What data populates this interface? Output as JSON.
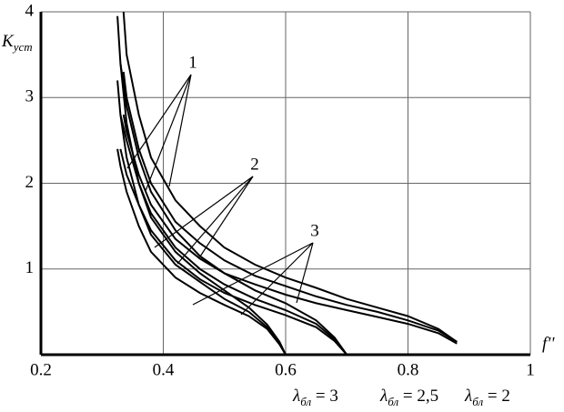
{
  "chart_data": {
    "type": "line",
    "ylabel": {
      "base": "K",
      "sub": "уст"
    },
    "xlabel": "f''",
    "xlim": [
      0.2,
      1
    ],
    "xticks": [
      0.2,
      0.4,
      0.6,
      0.8,
      1
    ],
    "ylim": [
      0,
      4
    ],
    "yticks": [
      1,
      2,
      3,
      4
    ],
    "grid": true,
    "color": "#000000",
    "series": [
      {
        "x": [
          0.325,
          0.33,
          0.34,
          0.36,
          0.38,
          0.42,
          0.46,
          0.5,
          0.54,
          0.57,
          0.59,
          0.6
        ],
        "values": [
          3.95,
          3.4,
          2.7,
          2.0,
          1.6,
          1.2,
          0.95,
          0.75,
          0.55,
          0.35,
          0.15,
          0
        ]
      },
      {
        "x": [
          0.325,
          0.33,
          0.34,
          0.36,
          0.38,
          0.42,
          0.46,
          0.5,
          0.54,
          0.57,
          0.59,
          0.6
        ],
        "values": [
          3.2,
          2.8,
          2.3,
          1.75,
          1.4,
          1.05,
          0.85,
          0.65,
          0.5,
          0.32,
          0.14,
          0
        ]
      },
      {
        "x": [
          0.325,
          0.33,
          0.34,
          0.36,
          0.38,
          0.42,
          0.46,
          0.5,
          0.54,
          0.57,
          0.59,
          0.6
        ],
        "values": [
          2.4,
          2.2,
          1.9,
          1.5,
          1.2,
          0.9,
          0.72,
          0.58,
          0.45,
          0.3,
          0.12,
          0
        ]
      },
      {
        "x": [
          0.33,
          0.34,
          0.36,
          0.38,
          0.42,
          0.46,
          0.5,
          0.55,
          0.6,
          0.65,
          0.68,
          0.7
        ],
        "values": [
          3.4,
          2.9,
          2.3,
          1.9,
          1.45,
          1.15,
          0.95,
          0.75,
          0.6,
          0.4,
          0.2,
          0
        ]
      },
      {
        "x": [
          0.33,
          0.34,
          0.36,
          0.38,
          0.42,
          0.46,
          0.5,
          0.55,
          0.6,
          0.65,
          0.68,
          0.7
        ],
        "values": [
          2.8,
          2.5,
          2.0,
          1.65,
          1.25,
          1.0,
          0.82,
          0.65,
          0.52,
          0.36,
          0.18,
          0
        ]
      },
      {
        "x": [
          0.33,
          0.34,
          0.36,
          0.38,
          0.42,
          0.46,
          0.5,
          0.55,
          0.6,
          0.65,
          0.68,
          0.7
        ],
        "values": [
          2.4,
          2.1,
          1.75,
          1.45,
          1.1,
          0.88,
          0.72,
          0.58,
          0.46,
          0.32,
          0.16,
          0
        ]
      },
      {
        "x": [
          0.335,
          0.34,
          0.36,
          0.38,
          0.42,
          0.46,
          0.5,
          0.55,
          0.6,
          0.65,
          0.7,
          0.75,
          0.8,
          0.85,
          0.88
        ],
        "values": [
          4.0,
          3.5,
          2.8,
          2.3,
          1.8,
          1.5,
          1.25,
          1.05,
          0.9,
          0.78,
          0.65,
          0.55,
          0.45,
          0.3,
          0.15
        ]
      },
      {
        "x": [
          0.335,
          0.34,
          0.36,
          0.38,
          0.42,
          0.46,
          0.5,
          0.55,
          0.6,
          0.65,
          0.7,
          0.75,
          0.8,
          0.85,
          0.88
        ],
        "values": [
          3.3,
          3.0,
          2.4,
          2.0,
          1.55,
          1.3,
          1.1,
          0.92,
          0.8,
          0.68,
          0.58,
          0.5,
          0.4,
          0.28,
          0.15
        ]
      },
      {
        "x": [
          0.335,
          0.34,
          0.36,
          0.38,
          0.42,
          0.46,
          0.5,
          0.55,
          0.6,
          0.65,
          0.7,
          0.75,
          0.8,
          0.85,
          0.88
        ],
        "values": [
          2.8,
          2.6,
          2.1,
          1.75,
          1.35,
          1.12,
          0.95,
          0.82,
          0.7,
          0.6,
          0.52,
          0.44,
          0.36,
          0.25,
          0.13
        ]
      }
    ],
    "annotations": [
      "1",
      "2",
      "3"
    ],
    "lambda_labels": [
      {
        "base": "λ",
        "sub": "бл",
        "rest": " = 3"
      },
      {
        "base": "λ",
        "sub": "бл",
        "rest": " = 2,5"
      },
      {
        "base": "λ",
        "sub": "бл",
        "rest": " = 2"
      }
    ]
  }
}
